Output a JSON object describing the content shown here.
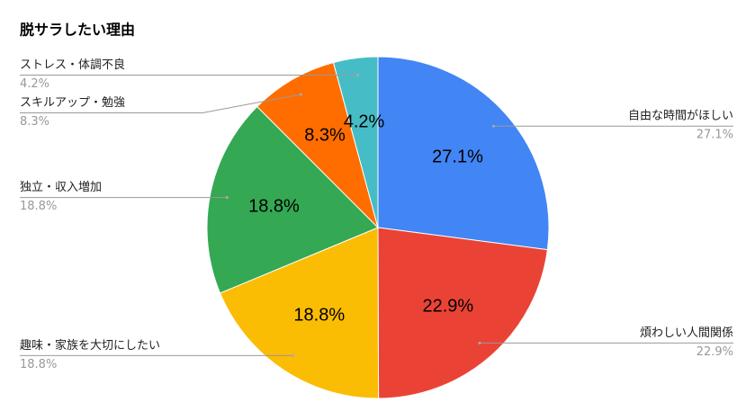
{
  "chart_data": {
    "type": "pie",
    "title": "脱サラしたい理由",
    "categories": [
      "自由な時間がほしい",
      "煩わしい人間関係",
      "趣味・家族を大切にしたい",
      "独立・収入増加",
      "スキルアップ・勉強",
      "ストレス・体調不良"
    ],
    "values": [
      27.1,
      22.9,
      18.8,
      18.8,
      8.3,
      4.2
    ],
    "value_labels": [
      "27.1%",
      "22.9%",
      "18.8%",
      "18.8%",
      "8.3%",
      "4.2%"
    ],
    "colors": [
      "#4285f4",
      "#ea4335",
      "#fbbc04",
      "#34a853",
      "#ff6d01",
      "#46bdc6"
    ]
  }
}
